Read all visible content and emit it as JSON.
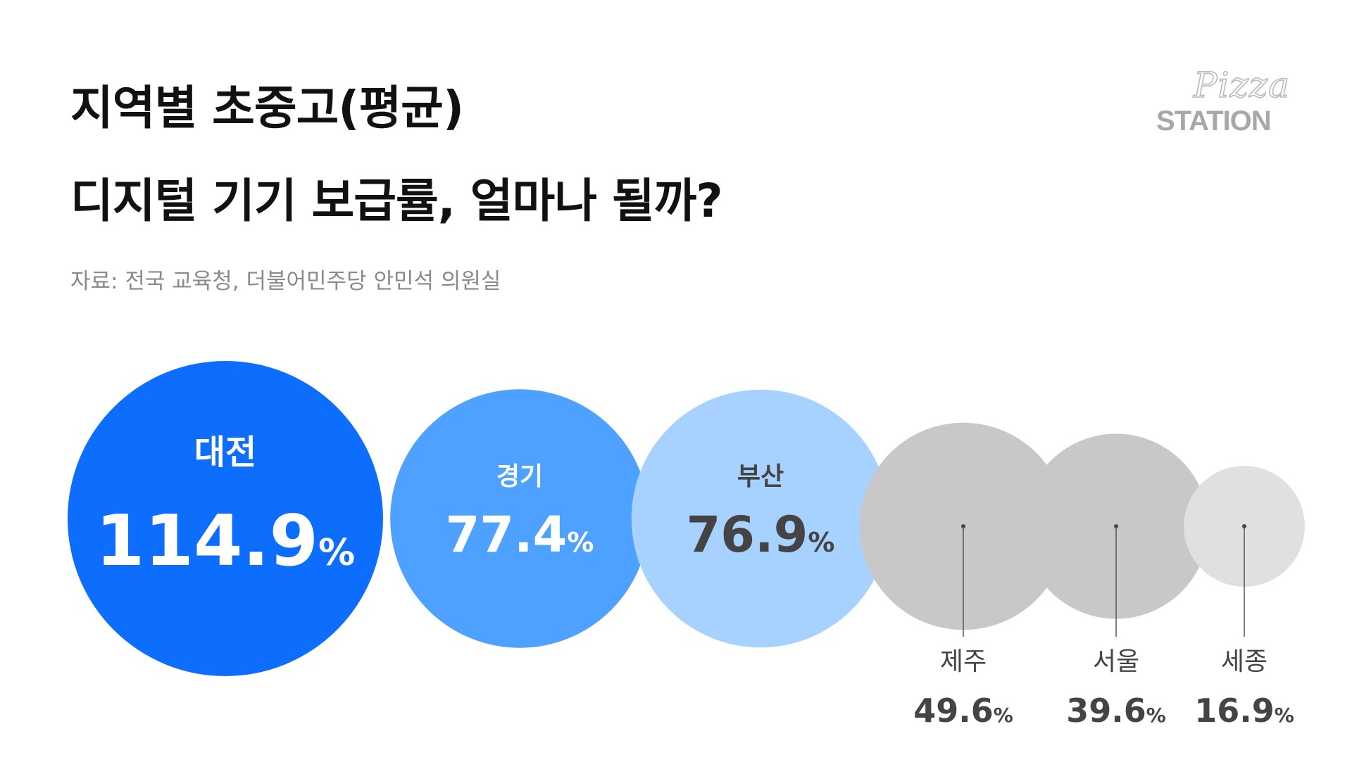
{
  "title": {
    "line1": "지역별 초중고(평균)",
    "line2": "디지털 기기 보급률, 얼마나 될까?"
  },
  "source": "자료: 전국 교육청, 더불어민주당 안민석 의원실",
  "logo": {
    "script": "Pizza",
    "word": "STATION"
  },
  "colors": {
    "dajeon": "#0d6efd",
    "gyeonggi": "#4ea1ff",
    "busan": "#a7d2ff",
    "gray": "#c8c8c8",
    "light_gray": "#e0e0e0",
    "label_dark": "#444444"
  },
  "chart_data": {
    "type": "bubble",
    "unit": "%",
    "categories": [
      "대전",
      "경기",
      "부산",
      "제주",
      "서울",
      "세종"
    ],
    "values": [
      114.9,
      77.4,
      76.9,
      49.6,
      39.6,
      16.9
    ],
    "value_labels": [
      "114.9",
      "77.4",
      "76.9",
      "49.6",
      "39.6",
      "16.9"
    ]
  }
}
